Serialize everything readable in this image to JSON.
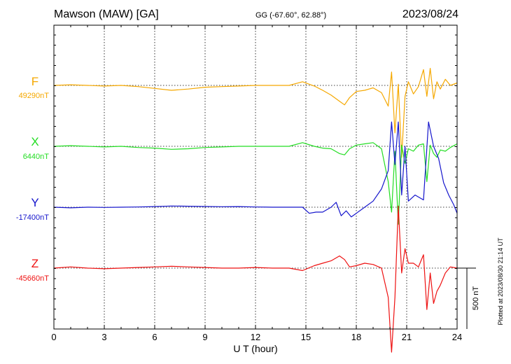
{
  "header": {
    "title": "Mawson (MAW)  [GA]",
    "coords": "GG (-67.60°,  62.88°)",
    "date": "2023/08/24"
  },
  "footer": {
    "plotted": "Plotted at 2023/08/30 21:14 UT"
  },
  "chart_data": {
    "type": "line",
    "title": "Mawson (MAW)  [GA]",
    "xlabel": "U T (hour)",
    "xlim": [
      0,
      24
    ],
    "xticks": [
      0,
      3,
      6,
      9,
      12,
      15,
      18,
      21,
      24
    ],
    "grid": true,
    "scale_bar": {
      "label": "500 nT",
      "value": 500
    },
    "series": [
      {
        "name": "F",
        "baseline_label": "49290nT",
        "baseline": 49290,
        "color": "#f5a800",
        "x": [
          0,
          1,
          2,
          3,
          4,
          5,
          6,
          7,
          8,
          9,
          10,
          11,
          12,
          13,
          14,
          14.8,
          15.5,
          16,
          16.5,
          17,
          17.3,
          17.6,
          18,
          18.5,
          19,
          19.5,
          19.9,
          20.1,
          20.3,
          20.5,
          20.7,
          20.9,
          21.1,
          21.4,
          21.7,
          22,
          22.2,
          22.4,
          22.6,
          22.8,
          23,
          23.3,
          23.6,
          24
        ],
        "y": [
          49290,
          49295,
          49290,
          49285,
          49290,
          49280,
          49265,
          49250,
          49260,
          49275,
          49280,
          49285,
          49290,
          49290,
          49290,
          49320,
          49285,
          49250,
          49210,
          49160,
          49130,
          49190,
          49240,
          49250,
          49270,
          49230,
          49120,
          49400,
          48900,
          49300,
          48700,
          49200,
          49320,
          49220,
          49280,
          49420,
          49200,
          49430,
          49180,
          49320,
          49260,
          49340,
          49290,
          49310
        ]
      },
      {
        "name": "X",
        "baseline_label": "6440nT",
        "baseline": 6440,
        "color": "#22dd22",
        "x": [
          0,
          1,
          2,
          3,
          4,
          5,
          6,
          7,
          8,
          9,
          10,
          11,
          12,
          13,
          14,
          14.8,
          15.5,
          16,
          16.5,
          17,
          17.3,
          17.6,
          18,
          18.5,
          19,
          19.5,
          19.9,
          20.1,
          20.3,
          20.5,
          20.7,
          20.9,
          21.1,
          21.4,
          21.7,
          22,
          22.2,
          22.4,
          22.6,
          22.8,
          23,
          23.3,
          23.6,
          24
        ],
        "y": [
          6440,
          6445,
          6440,
          6435,
          6440,
          6430,
          6425,
          6415,
          6420,
          6430,
          6435,
          6440,
          6440,
          6440,
          6440,
          6470,
          6440,
          6425,
          6420,
          6380,
          6370,
          6420,
          6450,
          6460,
          6470,
          6420,
          6150,
          5900,
          6400,
          5800,
          6450,
          6300,
          6420,
          6400,
          6450,
          6460,
          6150,
          6450,
          6380,
          6350,
          6410,
          6400,
          6430,
          6460
        ]
      },
      {
        "name": "Y",
        "baseline_label": "-17400nT",
        "baseline": -17400,
        "color": "#1515cc",
        "x": [
          0,
          1,
          2,
          3,
          4,
          5,
          6,
          7,
          8,
          9,
          10,
          11,
          12,
          13,
          14,
          14.8,
          15.2,
          15.6,
          16,
          16.5,
          16.8,
          17.1,
          17.4,
          17.7,
          18,
          18.5,
          19,
          19.5,
          19.9,
          20.1,
          20.3,
          20.5,
          20.7,
          20.9,
          21.1,
          21.5,
          22,
          22.3,
          22.6,
          22.9,
          23.2,
          23.5,
          23.8,
          24
        ],
        "y": [
          -17400,
          -17405,
          -17400,
          -17402,
          -17400,
          -17398,
          -17395,
          -17390,
          -17392,
          -17394,
          -17396,
          -17395,
          -17398,
          -17400,
          -17400,
          -17400,
          -17450,
          -17440,
          -17440,
          -17400,
          -17360,
          -17470,
          -17430,
          -17480,
          -17450,
          -17400,
          -17350,
          -17250,
          -17100,
          -16700,
          -17050,
          -16700,
          -17300,
          -16900,
          -17350,
          -17300,
          -17340,
          -16700,
          -16900,
          -17000,
          -17200,
          -17300,
          -17380,
          -17450
        ]
      },
      {
        "name": "Z",
        "baseline_label": "-45660nT",
        "baseline": -45660,
        "color": "#ee1111",
        "x": [
          0,
          1,
          2,
          3,
          4,
          5,
          6,
          7,
          8,
          9,
          10,
          11,
          12,
          13,
          14,
          14.8,
          15.5,
          16,
          16.5,
          17,
          17.3,
          17.6,
          18,
          18.5,
          19,
          19.5,
          19.9,
          20.1,
          20.3,
          20.5,
          20.7,
          20.9,
          21.1,
          21.4,
          21.7,
          22,
          22.2,
          22.4,
          22.6,
          22.8,
          23,
          23.3,
          23.6,
          24
        ],
        "y": [
          -45660,
          -45650,
          -45660,
          -45665,
          -45660,
          -45655,
          -45650,
          -45645,
          -45650,
          -45655,
          -45660,
          -45660,
          -45655,
          -45660,
          -45660,
          -45680,
          -45640,
          -45620,
          -45600,
          -45560,
          -45590,
          -45650,
          -45640,
          -45620,
          -45630,
          -45660,
          -45900,
          -46350,
          -45900,
          -45150,
          -45700,
          -45500,
          -45620,
          -45620,
          -45650,
          -45550,
          -46000,
          -45700,
          -45950,
          -45850,
          -45800,
          -45700,
          -45650,
          -45660
        ]
      }
    ]
  }
}
